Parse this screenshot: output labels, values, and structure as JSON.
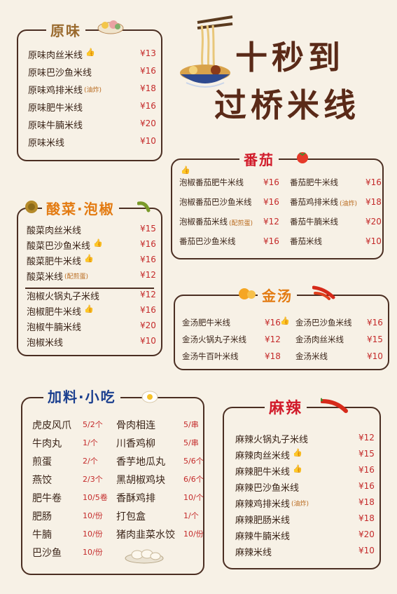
{
  "title_line1": "十秒到",
  "title_line2": "过桥米线",
  "sections": {
    "yuanwei": {
      "title": "原味",
      "items": [
        {
          "name": "原味肉丝米线",
          "price": "¥13",
          "note": "",
          "rec": true
        },
        {
          "name": "原味巴沙鱼米线",
          "price": "¥16",
          "note": "",
          "rec": false
        },
        {
          "name": "原味鸡排米线",
          "price": "¥18",
          "note": "(油炸)",
          "rec": false
        },
        {
          "name": "原味肥牛米线",
          "price": "¥16",
          "note": "",
          "rec": false
        },
        {
          "name": "原味牛腩米线",
          "price": "¥20",
          "note": "",
          "rec": false
        },
        {
          "name": "原味米线",
          "price": "¥10",
          "note": "",
          "rec": false
        }
      ]
    },
    "fanqie": {
      "title": "番茄",
      "items": [
        {
          "name": "泡椒番茄肥牛米线",
          "price": "¥16",
          "note": ""
        },
        {
          "name": "番茄肥牛米线",
          "price": "¥16",
          "note": ""
        },
        {
          "name": "泡椒番茄巴沙鱼米线",
          "price": "¥16",
          "note": ""
        },
        {
          "name": "番茄鸡排米线",
          "price": "¥18",
          "note": "(油炸)"
        },
        {
          "name": "泡椒番茄米线",
          "price": "¥12",
          "note": "(配煎蛋)"
        },
        {
          "name": "番茄牛腩米线",
          "price": "¥20",
          "note": ""
        },
        {
          "name": "番茄巴沙鱼米线",
          "price": "¥16",
          "note": ""
        },
        {
          "name": "番茄米线",
          "price": "¥10",
          "note": ""
        }
      ]
    },
    "suancai": {
      "title": "酸菜·泡椒",
      "items": [
        {
          "name": "酸菜肉丝米线",
          "price": "¥15",
          "note": "",
          "rec": false
        },
        {
          "name": "酸菜巴沙鱼米线",
          "price": "¥16",
          "note": "",
          "rec": true
        },
        {
          "name": "酸菜肥牛米线",
          "price": "¥16",
          "note": "",
          "rec": true
        },
        {
          "name": "酸菜米线",
          "price": "¥12",
          "note": "(配煎蛋)",
          "rec": false
        },
        {
          "name": "泡椒火锅丸子米线",
          "price": "¥12",
          "note": "",
          "rec": false
        },
        {
          "name": "泡椒肥牛米线",
          "price": "¥16",
          "note": "",
          "rec": true
        },
        {
          "name": "泡椒牛腩米线",
          "price": "¥20",
          "note": "",
          "rec": false
        },
        {
          "name": "泡椒米线",
          "price": "¥10",
          "note": "",
          "rec": false
        }
      ]
    },
    "jintang": {
      "title": "金汤",
      "items": [
        {
          "name": "金汤肥牛米线",
          "price": "¥16",
          "note": ""
        },
        {
          "name": "金汤巴沙鱼米线",
          "price": "¥16",
          "note": ""
        },
        {
          "name": "金汤火锅丸子米线",
          "price": "¥12",
          "note": ""
        },
        {
          "name": "金汤肉丝米线",
          "price": "¥15",
          "note": ""
        },
        {
          "name": "金汤牛百叶米线",
          "price": "¥18",
          "note": ""
        },
        {
          "name": "金汤米线",
          "price": "¥10",
          "note": ""
        }
      ]
    },
    "jialiao": {
      "title": "加料·小吃",
      "left": [
        {
          "name": "虎皮风爪",
          "price": "5/2个"
        },
        {
          "name": "牛肉丸",
          "price": "1/个"
        },
        {
          "name": "煎蛋",
          "price": "2/个"
        },
        {
          "name": "燕饺",
          "price": "2/3个"
        },
        {
          "name": "肥牛卷",
          "price": "10/5卷"
        },
        {
          "name": "肥肠",
          "price": "10/份"
        },
        {
          "name": "牛腩",
          "price": "10/份"
        },
        {
          "name": "巴沙鱼",
          "price": "10/份"
        }
      ],
      "right": [
        {
          "name": "骨肉相连",
          "price": "5/串"
        },
        {
          "name": "川香鸡柳",
          "price": "5/串"
        },
        {
          "name": "香芋地瓜丸",
          "price": "5/6个"
        },
        {
          "name": "黑胡椒鸡块",
          "price": "6/6个"
        },
        {
          "name": "香酥鸡排",
          "price": "10/个"
        },
        {
          "name": "打包盒",
          "price": "1/个"
        },
        {
          "name": "猪肉韭菜水饺",
          "price": "10/份"
        }
      ]
    },
    "mala": {
      "title": "麻辣",
      "items": [
        {
          "name": "麻辣火锅丸子米线",
          "price": "¥12",
          "note": "",
          "rec": false
        },
        {
          "name": "麻辣肉丝米线",
          "price": "¥15",
          "note": "",
          "rec": true
        },
        {
          "name": "麻辣肥牛米线",
          "price": "¥16",
          "note": "",
          "rec": true
        },
        {
          "name": "麻辣巴沙鱼米线",
          "price": "¥16",
          "note": "",
          "rec": false
        },
        {
          "name": "麻辣鸡排米线",
          "price": "¥18",
          "note": "(油炸)",
          "rec": false
        },
        {
          "name": "麻辣肥肠米线",
          "price": "¥18",
          "note": "",
          "rec": false
        },
        {
          "name": "麻辣牛腩米线",
          "price": "¥20",
          "note": "",
          "rec": false
        },
        {
          "name": "麻辣米线",
          "price": "¥10",
          "note": "",
          "rec": false
        }
      ]
    }
  },
  "colors": {
    "text": "#3a2418",
    "price": "#c42a2a",
    "border": "#4b2e22",
    "background": "#f7f1e6"
  },
  "icons": [
    "thumbs-up-icon",
    "noodle-bowl-icon",
    "tomato-icon",
    "orange-icon",
    "chili-icon",
    "egg-icon",
    "pickle-icon",
    "dumpling-icon"
  ]
}
